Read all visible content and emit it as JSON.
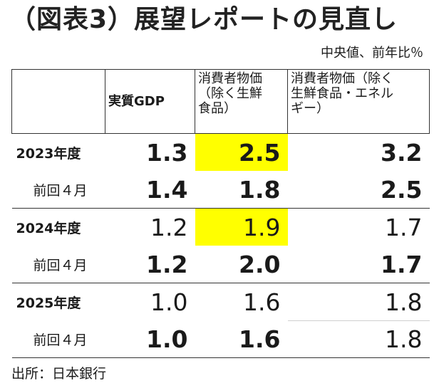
{
  "title": "（図表3）展望レポートの見直し",
  "unit_note": "中央値、前年比％",
  "header": {
    "col1": "",
    "col2": "実質GDP",
    "col3_line1": "消費者物価",
    "col3_line2": "（除く生鮮",
    "col3_line3": "食品）",
    "col4_line1": "消費者物価（除く",
    "col4_line2": "生鮮食品・エネル",
    "col4_line3": "ギー）"
  },
  "rows": [
    {
      "label": "2023年度",
      "gdp": "1.3",
      "cpi_core": "2.5",
      "cpi_core_core": "3.2"
    },
    {
      "label": "前回４月",
      "gdp": "1.4",
      "cpi_core": "1.8",
      "cpi_core_core": "2.5"
    },
    {
      "label": "2024年度",
      "gdp": "1.2",
      "cpi_core": "1.9",
      "cpi_core_core": "1.7"
    },
    {
      "label": "前回４月",
      "gdp": "1.2",
      "cpi_core": "2.0",
      "cpi_core_core": "1.7"
    },
    {
      "label": "2025年度",
      "gdp": "1.0",
      "cpi_core": "1.6",
      "cpi_core_core": "1.8"
    },
    {
      "label": "前回４月",
      "gdp": "1.0",
      "cpi_core": "1.6",
      "cpi_core_core": "1.8"
    }
  ],
  "highlight_color": "#ffff00",
  "source": "出所：日本銀行"
}
